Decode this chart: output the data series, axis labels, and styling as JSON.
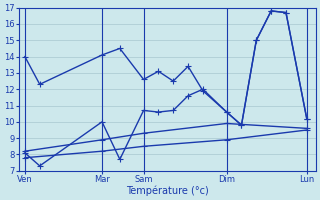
{
  "bg_color": "#cde8ec",
  "line_color": "#1a3aad",
  "grid_color": "#a8c8d0",
  "ylim": [
    7,
    17
  ],
  "yticks": [
    7,
    8,
    9,
    10,
    11,
    12,
    13,
    14,
    15,
    16,
    17
  ],
  "xlabel": "Température (°c)",
  "xlim": [
    0,
    100
  ],
  "xtick_pos": [
    2,
    28,
    42,
    70,
    97
  ],
  "xtick_labels": [
    "Ven",
    "Mar",
    "Sam",
    "Dim",
    "Lun"
  ],
  "line1_x": [
    2,
    7,
    28,
    34,
    42,
    47,
    52,
    57,
    62,
    70,
    75,
    80,
    85,
    90,
    97
  ],
  "line1_y": [
    14.0,
    12.3,
    14.1,
    14.5,
    12.6,
    13.1,
    12.5,
    13.4,
    11.9,
    10.6,
    9.8,
    15.0,
    16.8,
    16.7,
    10.2
  ],
  "line2_x": [
    2,
    7,
    28,
    34,
    42,
    47,
    52,
    57,
    62,
    70,
    75,
    80,
    85,
    90,
    97
  ],
  "line2_y": [
    8.1,
    7.3,
    10.0,
    7.7,
    10.7,
    10.6,
    10.7,
    11.6,
    12.0,
    10.6,
    9.8,
    15.0,
    16.8,
    16.7,
    10.2
  ],
  "line3_x": [
    2,
    28,
    42,
    70,
    97
  ],
  "line3_y": [
    8.2,
    8.9,
    9.3,
    9.9,
    9.6
  ],
  "line4_x": [
    2,
    28,
    42,
    70,
    97
  ],
  "line4_y": [
    7.8,
    8.2,
    8.5,
    8.9,
    9.5
  ],
  "lw": 1.0,
  "ms": 4
}
